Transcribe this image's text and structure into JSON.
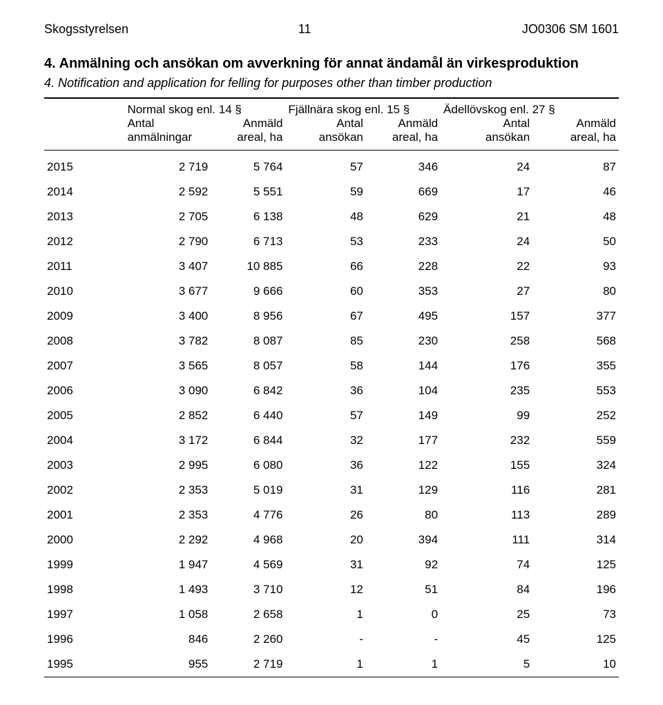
{
  "header": {
    "org": "Skogsstyrelsen",
    "page_num": "11",
    "doc_code": "JO0306 SM 1601"
  },
  "titles": {
    "sv": "4. Anmälning och ansökan om avverkning för annat ändamål än virkesproduktion",
    "en": "4. Notification and application for felling for purposes other than timber production"
  },
  "column_groups": [
    {
      "label": "Normal skog enl. 14 §",
      "span": 2
    },
    {
      "label": "Fjällnära skog enl. 15 §",
      "span": 2
    },
    {
      "label": "Ädellövskog enl. 27 §",
      "span": 2
    }
  ],
  "sub_headers": {
    "year": "",
    "cols": [
      {
        "l1": "Antal",
        "l2": "anmälningar"
      },
      {
        "l1": "Anmäld",
        "l2": "areal, ha"
      },
      {
        "l1": "Antal",
        "l2": "ansökan"
      },
      {
        "l1": "Anmäld",
        "l2": "areal, ha"
      },
      {
        "l1": "Antal",
        "l2": "ansökan"
      },
      {
        "l1": "Anmäld",
        "l2": "areal, ha"
      }
    ]
  },
  "rows": [
    {
      "year": "2015",
      "v": [
        "2 719",
        "5 764",
        "57",
        "346",
        "24",
        "87"
      ]
    },
    {
      "year": "2014",
      "v": [
        "2 592",
        "5 551",
        "59",
        "669",
        "17",
        "46"
      ]
    },
    {
      "year": "2013",
      "v": [
        "2 705",
        "6 138",
        "48",
        "629",
        "21",
        "48"
      ]
    },
    {
      "year": "2012",
      "v": [
        "2 790",
        "6 713",
        "53",
        "233",
        "24",
        "50"
      ]
    },
    {
      "year": "2011",
      "v": [
        "3 407",
        "10 885",
        "66",
        "228",
        "22",
        "93"
      ]
    },
    {
      "year": "2010",
      "v": [
        "3 677",
        "9 666",
        "60",
        "353",
        "27",
        "80"
      ]
    },
    {
      "year": "2009",
      "v": [
        "3 400",
        "8 956",
        "67",
        "495",
        "157",
        "377"
      ]
    },
    {
      "year": "2008",
      "v": [
        "3 782",
        "8 087",
        "85",
        "230",
        "258",
        "568"
      ]
    },
    {
      "year": "2007",
      "v": [
        "3 565",
        "8 057",
        "58",
        "144",
        "176",
        "355"
      ]
    },
    {
      "year": "2006",
      "v": [
        "3 090",
        "6 842",
        "36",
        "104",
        "235",
        "553"
      ]
    },
    {
      "year": "2005",
      "v": [
        "2 852",
        "6 440",
        "57",
        "149",
        "99",
        "252"
      ]
    },
    {
      "year": "2004",
      "v": [
        "3 172",
        "6 844",
        "32",
        "177",
        "232",
        "559"
      ]
    },
    {
      "year": "2003",
      "v": [
        "2 995",
        "6 080",
        "36",
        "122",
        "155",
        "324"
      ]
    },
    {
      "year": "2002",
      "v": [
        "2 353",
        "5 019",
        "31",
        "129",
        "116",
        "281"
      ]
    },
    {
      "year": "2001",
      "v": [
        "2 353",
        "4 776",
        "26",
        "80",
        "113",
        "289"
      ]
    },
    {
      "year": "2000",
      "v": [
        "2 292",
        "4 968",
        "20",
        "394",
        "111",
        "314"
      ]
    },
    {
      "year": "1999",
      "v": [
        "1 947",
        "4 569",
        "31",
        "92",
        "74",
        "125"
      ]
    },
    {
      "year": "1998",
      "v": [
        "1 493",
        "3 710",
        "12",
        "51",
        "84",
        "196"
      ]
    },
    {
      "year": "1997",
      "v": [
        "1 058",
        "2 658",
        "1",
        "0",
        "25",
        "73"
      ]
    },
    {
      "year": "1996",
      "v": [
        "846",
        "2 260",
        "-",
        "-",
        "45",
        "125"
      ]
    },
    {
      "year": "1995",
      "v": [
        "955",
        "2 719",
        "1",
        "1",
        "5",
        "10"
      ]
    }
  ],
  "style": {
    "font_family": "Arial, Helvetica, sans-serif",
    "body_font_size_pt": 13,
    "header_font_size_pt": 14,
    "title_font_size_pt": 15,
    "background_color": "#ffffff",
    "text_color": "#000000",
    "rule_color": "#000000",
    "col_widths_pct": [
      14,
      15,
      13,
      14,
      13,
      16,
      15
    ]
  }
}
